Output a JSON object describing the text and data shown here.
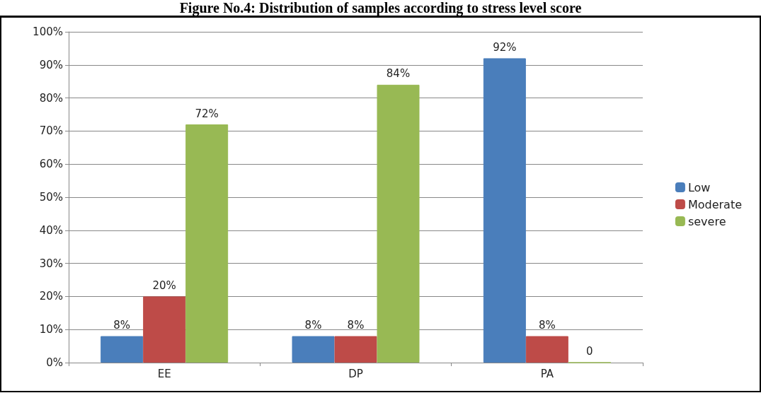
{
  "chart_data": {
    "type": "bar",
    "title": "Figure No.4: Distribution of samples according to stress level score",
    "categories": [
      "EE",
      "DP",
      "PA"
    ],
    "series": [
      {
        "name": "Low",
        "color": "#4a7ebb",
        "values": [
          8,
          8,
          92
        ],
        "value_labels": [
          "8%",
          "8%",
          "92%"
        ]
      },
      {
        "name": "Moderate",
        "color": "#be4b48",
        "values": [
          20,
          8,
          8
        ],
        "value_labels": [
          "20%",
          "8%",
          "8%"
        ]
      },
      {
        "name": "severe",
        "color": "#98b954",
        "values": [
          72,
          84,
          0
        ],
        "value_labels": [
          "72%",
          "84%",
          "0"
        ]
      }
    ],
    "ylim": [
      0,
      100
    ],
    "yticks": [
      {
        "value": 0,
        "label": "0%"
      },
      {
        "value": 10,
        "label": "10%"
      },
      {
        "value": 20,
        "label": "20%"
      },
      {
        "value": 30,
        "label": "30%"
      },
      {
        "value": 40,
        "label": "40%"
      },
      {
        "value": 50,
        "label": "50%"
      },
      {
        "value": 60,
        "label": "60%"
      },
      {
        "value": 70,
        "label": "70%"
      },
      {
        "value": 80,
        "label": "80%"
      },
      {
        "value": 90,
        "label": "90%"
      },
      {
        "value": 100,
        "label": "100%"
      }
    ],
    "grid": "y",
    "legend": "right"
  }
}
